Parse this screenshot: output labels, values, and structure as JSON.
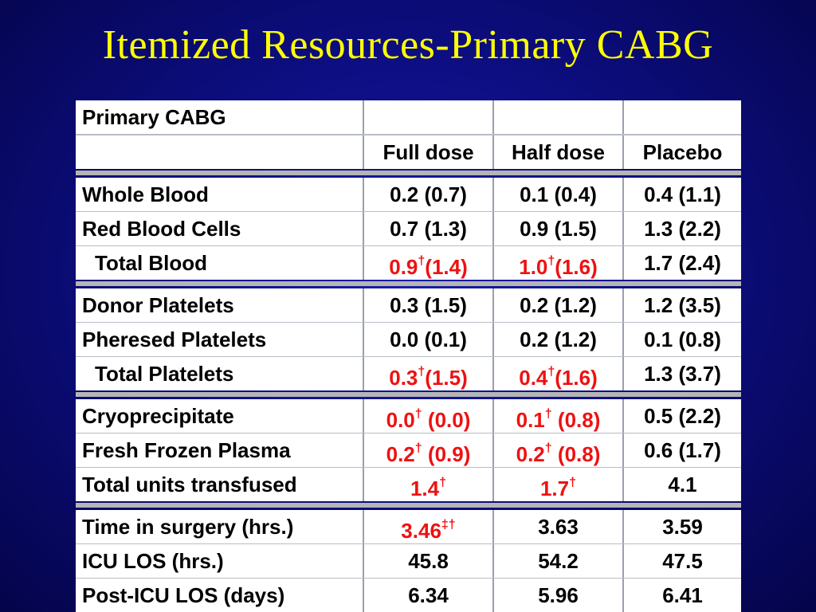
{
  "title": "Itemized Resources-Primary CABG",
  "table": {
    "corner_label": "Primary CABG",
    "columns": [
      "Full dose",
      "Half dose",
      "Placebo"
    ],
    "groups": [
      {
        "rows": [
          {
            "label": "Whole Blood",
            "values": [
              "0.2 (0.7)",
              "0.1 (0.4)",
              "0.4 (1.1)"
            ]
          },
          {
            "label": "Red Blood Cells",
            "values": [
              "0.7 (1.3)",
              "0.9 (1.5)",
              "1.3 (2.2)"
            ]
          },
          {
            "label": "Total Blood",
            "indent": true,
            "values": [
              {
                "main": "0.9",
                "sup": "†",
                "tail": "(1.4)",
                "color": "red"
              },
              {
                "main": "1.0",
                "sup": "†",
                "tail": "(1.6)",
                "color": "red"
              },
              "1.7 (2.4)"
            ]
          }
        ]
      },
      {
        "rows": [
          {
            "label": "Donor Platelets",
            "values": [
              "0.3 (1.5)",
              "0.2 (1.2)",
              "1.2 (3.5)"
            ]
          },
          {
            "label": "Pheresed Platelets",
            "values": [
              "0.0 (0.1)",
              "0.2 (1.2)",
              "0.1  (0.8)"
            ]
          },
          {
            "label": "Total Platelets",
            "indent": true,
            "values": [
              {
                "main": "0.3",
                "sup": "†",
                "tail": "(1.5)",
                "color": "red"
              },
              {
                "main": "0.4",
                "sup": "†",
                "tail": "(1.6)",
                "color": "red"
              },
              "1.3 (3.7)"
            ]
          }
        ]
      },
      {
        "rows": [
          {
            "label": "Cryoprecipitate",
            "values": [
              {
                "main": "0.0",
                "sup": "†",
                "tail": " (0.0)",
                "color": "red"
              },
              {
                "main": "0.1",
                "sup": "†",
                "tail": " (0.8)",
                "color": "red"
              },
              "0.5 (2.2)"
            ]
          },
          {
            "label": "Fresh Frozen Plasma",
            "values": [
              {
                "main": "0.2",
                "sup": "†",
                "tail": " (0.9)",
                "color": "red"
              },
              {
                "main": "0.2",
                "sup": "†",
                "tail": " (0.8)",
                "color": "red"
              },
              "0.6 (1.7)"
            ]
          },
          {
            "label": "Total units transfused",
            "values": [
              {
                "main": "1.4",
                "sup": "†",
                "tail": "",
                "color": "red"
              },
              {
                "main": "1.7",
                "sup": "†",
                "tail": "",
                "color": "red"
              },
              "4.1"
            ]
          }
        ]
      },
      {
        "rows": [
          {
            "label": "Time in surgery (hrs.)",
            "values": [
              {
                "main": "3.46",
                "sup": "‡†",
                "tail": "",
                "color": "red"
              },
              "3.63",
              "3.59"
            ]
          },
          {
            "label": "ICU LOS (hrs.)",
            "values": [
              "45.8",
              "54.2",
              "47.5"
            ]
          },
          {
            "label": "Post-ICU LOS (days)",
            "values": [
              "6.34",
              "5.96",
              "6.41"
            ]
          }
        ]
      }
    ]
  },
  "colors": {
    "title": "#ffff00",
    "highlight": "#ee1111",
    "background": "#0d0e82",
    "separator": "#b5b5b5"
  }
}
